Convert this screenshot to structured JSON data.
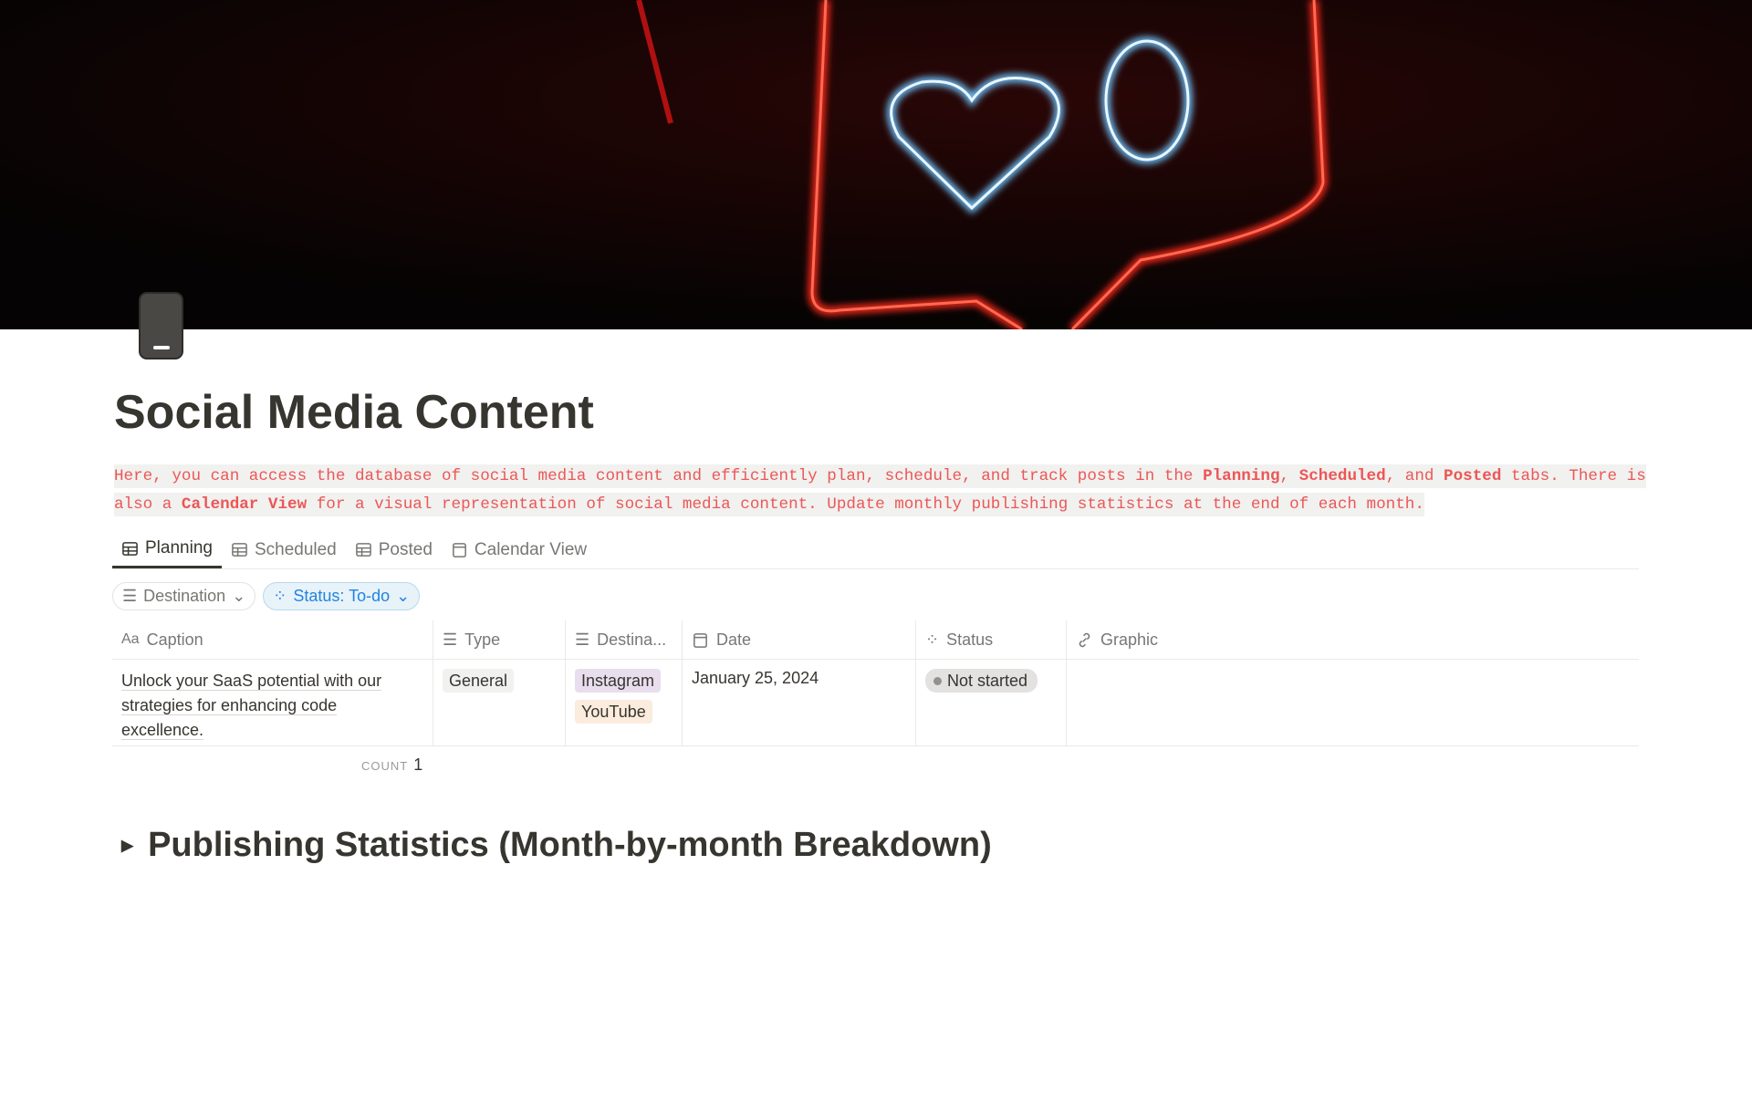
{
  "page": {
    "title": "Social Media Content",
    "icon": "phone-icon"
  },
  "description": {
    "part1": "Here, you can access the database of social media content and efficiently plan, schedule, and track posts in the ",
    "b1": "Planning",
    "sep1": ", ",
    "b2": "Scheduled",
    "sep2": ", and ",
    "b3": "Posted",
    "part2": " tabs. There is also a ",
    "b4": "Calendar View",
    "part3": " for a visual representation of social media content. Update monthly publishing statistics at the end of each month."
  },
  "tabs": [
    {
      "label": "Planning",
      "icon": "table-icon",
      "active": true
    },
    {
      "label": "Scheduled",
      "icon": "table-icon"
    },
    {
      "label": "Posted",
      "icon": "table-icon"
    },
    {
      "label": "Calendar View",
      "icon": "calendar-icon"
    }
  ],
  "filters": [
    {
      "label": "Destination"
    },
    {
      "label": "Status: To-do",
      "active": true
    }
  ],
  "table": {
    "columns": [
      {
        "label": "Caption",
        "icon": "Aa"
      },
      {
        "label": "Type"
      },
      {
        "label": "Destina..."
      },
      {
        "label": "Date"
      },
      {
        "label": "Status"
      },
      {
        "label": "Graphic"
      }
    ],
    "rows": [
      {
        "caption": "Unlock your SaaS potential with our strategies for enhancing code excellence.",
        "type": "General",
        "destinations": [
          "Instagram",
          "YouTube"
        ],
        "date": "January 25, 2024",
        "status": "Not started",
        "graphic": ""
      }
    ],
    "count_label": "COUNT",
    "count": "1"
  },
  "toggle": {
    "heading": "Publishing Statistics (Month-by-month Breakdown)"
  },
  "colors": {
    "accent_red": "#eb5757",
    "instagram": "#e8deee",
    "youtube": "#fbecdd",
    "general": "#f1f1ef",
    "status_blue": "#2383e2"
  }
}
